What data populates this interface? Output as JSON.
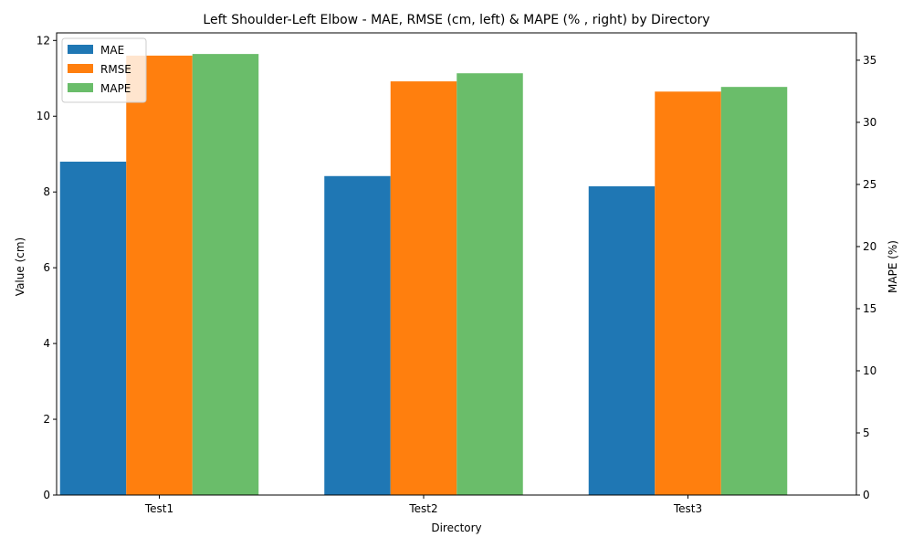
{
  "chart_data": {
    "type": "bar",
    "title": "Left Shoulder-Left Elbow - MAE, RMSE (cm, left) & MAPE (% , right) by Directory",
    "xlabel": "Directory",
    "ylabel": "Value (cm)",
    "y2label": "MAPE (%)",
    "categories": [
      "Test1",
      "Test2",
      "Test3"
    ],
    "ylim": [
      0,
      12.2
    ],
    "y2lim": [
      0,
      37.2
    ],
    "yticks": [
      0,
      2,
      4,
      6,
      8,
      10,
      12
    ],
    "y2ticks": [
      0,
      5,
      10,
      15,
      20,
      25,
      30,
      35
    ],
    "grid": false,
    "legend_position": "top-left",
    "series": [
      {
        "name": "MAE",
        "axis": "left",
        "color": "#1f77b4",
        "values": [
          8.8,
          8.42,
          8.15
        ]
      },
      {
        "name": "RMSE",
        "axis": "left",
        "color": "#ff7f0e",
        "values": [
          11.6,
          10.92,
          10.65
        ]
      },
      {
        "name": "MAPE",
        "axis": "right",
        "color": "#6abd6a",
        "values": [
          35.5,
          33.95,
          32.85
        ]
      }
    ]
  }
}
